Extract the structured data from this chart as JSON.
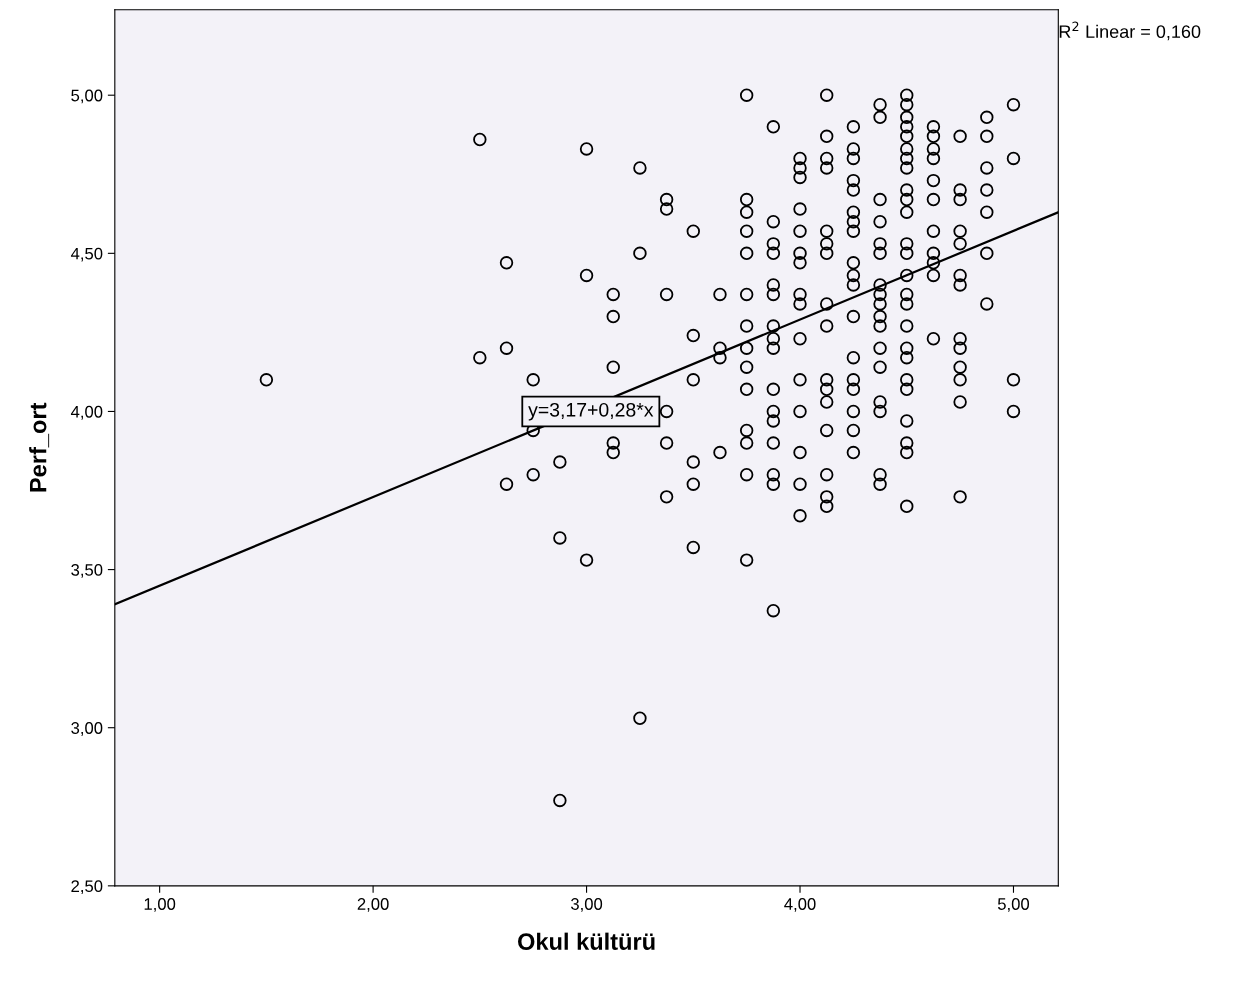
{
  "chart_data": {
    "type": "scatter",
    "xlabel": "Okul kültürü",
    "ylabel": "Perf_ort",
    "xlim": [
      0.79,
      5.21
    ],
    "ylim": [
      2.5,
      5.27
    ],
    "xticks": [
      {
        "value": 1,
        "label": "1,00"
      },
      {
        "value": 2,
        "label": "2,00"
      },
      {
        "value": 3,
        "label": "3,00"
      },
      {
        "value": 4,
        "label": "4,00"
      },
      {
        "value": 5,
        "label": "5,00"
      }
    ],
    "yticks": [
      {
        "value": 2.5,
        "label": "2,50"
      },
      {
        "value": 3,
        "label": "3,00"
      },
      {
        "value": 3.5,
        "label": "3,50"
      },
      {
        "value": 4,
        "label": "4,00"
      },
      {
        "value": 4.5,
        "label": "4,50"
      },
      {
        "value": 5,
        "label": "5,00"
      }
    ],
    "grid": false,
    "legend": false,
    "marker": "circle",
    "series": [
      {
        "color": "#000000",
        "x": [
          1.5,
          2.5,
          2.5,
          2.625,
          2.625,
          2.625,
          2.75,
          2.75,
          2.75,
          2.875,
          2.875,
          2.875,
          3.0,
          3.0,
          3.0,
          3.125,
          3.125,
          3.125,
          3.125,
          3.125,
          3.25,
          3.25,
          3.25,
          3.375,
          3.375,
          3.375,
          3.375,
          3.375,
          3.375,
          3.5,
          3.5,
          3.5,
          3.5,
          3.5,
          3.5,
          3.625,
          3.625,
          3.625,
          3.625,
          3.75,
          3.75,
          3.75,
          3.75,
          3.75,
          3.75,
          3.75,
          3.75,
          3.75,
          3.75,
          3.75,
          3.75,
          3.75,
          3.75,
          3.875,
          3.875,
          3.875,
          3.875,
          3.875,
          3.875,
          3.875,
          3.875,
          3.875,
          3.875,
          3.875,
          3.875,
          3.875,
          3.875,
          3.875,
          3.875,
          4.0,
          4.0,
          4.0,
          4.0,
          4.0,
          4.0,
          4.0,
          4.0,
          4.0,
          4.0,
          4.0,
          4.0,
          4.0,
          4.0,
          4.0,
          4.125,
          4.125,
          4.125,
          4.125,
          4.125,
          4.125,
          4.125,
          4.125,
          4.125,
          4.125,
          4.125,
          4.125,
          4.125,
          4.125,
          4.125,
          4.125,
          4.25,
          4.25,
          4.25,
          4.25,
          4.25,
          4.25,
          4.25,
          4.25,
          4.25,
          4.25,
          4.25,
          4.25,
          4.25,
          4.25,
          4.25,
          4.25,
          4.25,
          4.25,
          4.375,
          4.375,
          4.375,
          4.375,
          4.375,
          4.375,
          4.375,
          4.375,
          4.375,
          4.375,
          4.375,
          4.375,
          4.375,
          4.375,
          4.375,
          4.375,
          4.375,
          4.5,
          4.5,
          4.5,
          4.5,
          4.5,
          4.5,
          4.5,
          4.5,
          4.5,
          4.5,
          4.5,
          4.5,
          4.5,
          4.5,
          4.5,
          4.5,
          4.5,
          4.5,
          4.5,
          4.5,
          4.5,
          4.5,
          4.5,
          4.5,
          4.5,
          4.625,
          4.625,
          4.625,
          4.625,
          4.625,
          4.625,
          4.625,
          4.625,
          4.625,
          4.625,
          4.625,
          4.75,
          4.75,
          4.75,
          4.75,
          4.75,
          4.75,
          4.75,
          4.75,
          4.75,
          4.75,
          4.75,
          4.75,
          4.75,
          4.875,
          4.875,
          4.875,
          4.875,
          4.875,
          4.875,
          4.875,
          5.0,
          5.0,
          5.0,
          5.0
        ],
        "values": [
          4.1,
          4.86,
          4.17,
          4.47,
          4.2,
          3.77,
          4.1,
          3.94,
          3.8,
          3.84,
          3.6,
          2.77,
          4.83,
          4.43,
          3.53,
          4.37,
          4.3,
          4.14,
          3.9,
          3.87,
          4.77,
          4.5,
          3.03,
          4.67,
          4.64,
          4.37,
          4.0,
          3.9,
          3.73,
          4.57,
          4.24,
          4.1,
          3.84,
          3.77,
          3.57,
          4.37,
          4.2,
          4.17,
          3.87,
          5.0,
          4.67,
          4.63,
          4.57,
          4.5,
          4.37,
          4.27,
          4.2,
          4.14,
          4.07,
          3.94,
          3.9,
          3.8,
          3.53,
          4.9,
          4.6,
          4.53,
          4.5,
          4.4,
          4.37,
          4.27,
          4.23,
          4.2,
          4.07,
          4.0,
          3.97,
          3.9,
          3.8,
          3.77,
          3.37,
          4.8,
          4.77,
          4.74,
          4.64,
          4.57,
          4.5,
          4.47,
          4.37,
          4.34,
          4.23,
          4.1,
          4.0,
          3.87,
          3.77,
          3.67,
          5.0,
          4.87,
          4.8,
          4.77,
          4.57,
          4.53,
          4.5,
          4.34,
          4.27,
          4.1,
          4.07,
          4.03,
          3.94,
          3.8,
          3.73,
          3.7,
          4.9,
          4.83,
          4.8,
          4.73,
          4.7,
          4.63,
          4.6,
          4.57,
          4.47,
          4.43,
          4.4,
          4.3,
          4.17,
          4.1,
          4.07,
          4.0,
          3.94,
          3.87,
          4.97,
          4.93,
          4.67,
          4.6,
          4.53,
          4.5,
          4.4,
          4.37,
          4.34,
          4.3,
          4.27,
          4.2,
          4.14,
          4.03,
          4.0,
          3.8,
          3.77,
          5.0,
          4.97,
          4.93,
          4.9,
          4.87,
          4.83,
          4.8,
          4.77,
          4.7,
          4.67,
          4.63,
          4.53,
          4.5,
          4.43,
          4.37,
          4.34,
          4.27,
          4.2,
          4.17,
          4.1,
          4.07,
          3.97,
          3.9,
          3.87,
          3.7,
          4.9,
          4.87,
          4.83,
          4.8,
          4.73,
          4.67,
          4.57,
          4.5,
          4.47,
          4.43,
          4.23,
          4.87,
          4.7,
          4.67,
          4.57,
          4.53,
          4.43,
          4.4,
          4.23,
          4.2,
          4.14,
          4.1,
          4.03,
          3.73,
          4.93,
          4.87,
          4.77,
          4.7,
          4.63,
          4.5,
          4.34,
          4.97,
          4.8,
          4.1,
          4.0
        ]
      },
      {
        "type": "line",
        "color": "#000000",
        "marker": "none",
        "x": [
          0.79,
          5.21
        ],
        "values": [
          3.39,
          4.63
        ]
      }
    ],
    "annotations": [
      {
        "text": "y=3,17+0,28*x",
        "x": 3.02,
        "y": 4.0
      },
      "R$^{2}$ Linear = 0,160"
    ]
  }
}
